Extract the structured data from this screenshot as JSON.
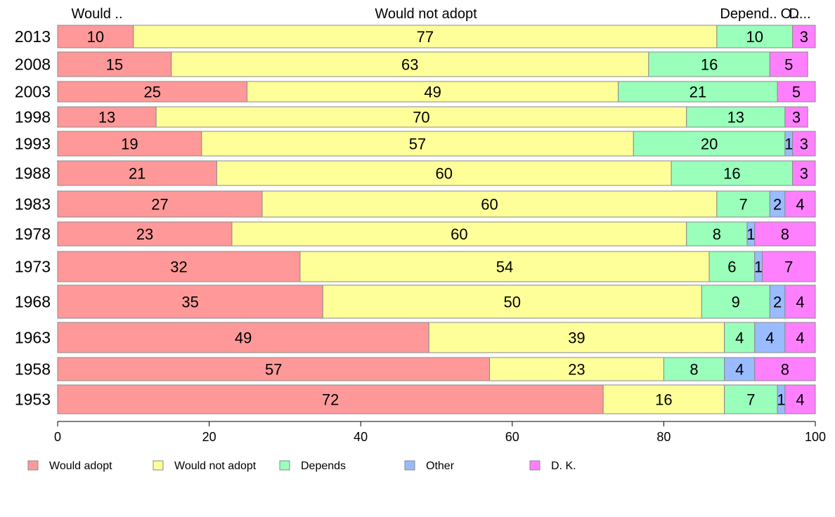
{
  "chart_data": {
    "type": "bar",
    "orientation": "horizontal",
    "stacked": true,
    "categories": [
      "2013",
      "2008",
      "2003",
      "1998",
      "1993",
      "1988",
      "1983",
      "1978",
      "1973",
      "1968",
      "1963",
      "1958",
      "1953"
    ],
    "series": [
      {
        "name": "Would adopt",
        "color": "#ff9999",
        "values": [
          10,
          15,
          25,
          13,
          19,
          21,
          27,
          23,
          32,
          35,
          49,
          57,
          72
        ]
      },
      {
        "name": "Would not adopt",
        "color": "#ffff99",
        "values": [
          77,
          63,
          49,
          70,
          57,
          60,
          60,
          60,
          54,
          50,
          39,
          23,
          16
        ]
      },
      {
        "name": "Depends",
        "color": "#99ffbb",
        "values": [
          10,
          16,
          21,
          13,
          20,
          16,
          7,
          8,
          6,
          9,
          4,
          8,
          7
        ]
      },
      {
        "name": "Other",
        "color": "#99bbff",
        "values": [
          0,
          0,
          0,
          0,
          1,
          0,
          2,
          1,
          1,
          2,
          4,
          4,
          1
        ]
      },
      {
        "name": "D. K.",
        "color": "#ff80ff",
        "values": [
          3,
          5,
          5,
          3,
          3,
          3,
          4,
          8,
          7,
          4,
          4,
          8,
          4
        ]
      }
    ],
    "top_labels": [
      "Would ..",
      "Would not adopt",
      "Depend..",
      "O..",
      "D..."
    ],
    "xlim": [
      0,
      100
    ],
    "xticks": [
      "0",
      "20",
      "40",
      "60",
      "80",
      "100"
    ],
    "grid": false,
    "legend_position": "bottom"
  }
}
